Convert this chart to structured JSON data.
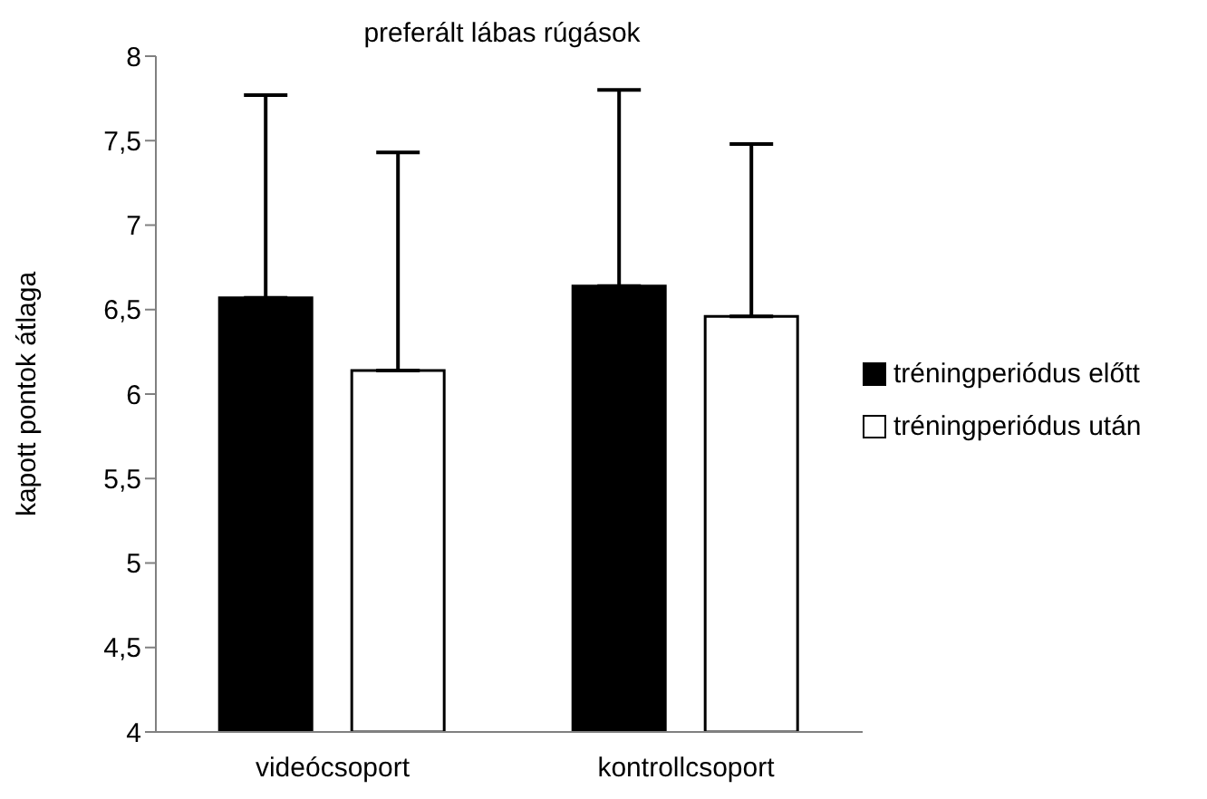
{
  "chart_data": {
    "type": "bar",
    "title": "preferált lábas rúgások",
    "ylabel": "kapott pontok átlaga",
    "categories": [
      "videócsoport",
      "kontrollcsoport"
    ],
    "series": [
      {
        "name": "tréningperiódus előtt",
        "color": "#000000",
        "values": [
          6.57,
          6.64
        ],
        "errors": [
          [
            6.57,
            7.77
          ],
          [
            6.64,
            7.8
          ]
        ]
      },
      {
        "name": "tréningperiódus után",
        "color": "#ffffff",
        "values": [
          6.14,
          6.46
        ],
        "errors": [
          [
            6.14,
            7.43
          ],
          [
            6.46,
            7.48
          ]
        ]
      }
    ],
    "ylim": [
      4,
      8
    ],
    "yticks": [
      {
        "value": 4,
        "label": "4"
      },
      {
        "value": 4.5,
        "label": "4,5"
      },
      {
        "value": 5,
        "label": "5"
      },
      {
        "value": 5.5,
        "label": "5,5"
      },
      {
        "value": 6,
        "label": "6"
      },
      {
        "value": 6.5,
        "label": "6,5"
      },
      {
        "value": 7,
        "label": "7"
      },
      {
        "value": 7.5,
        "label": "7,5"
      },
      {
        "value": 8,
        "label": "8"
      }
    ],
    "grid": false,
    "legend": "right"
  }
}
